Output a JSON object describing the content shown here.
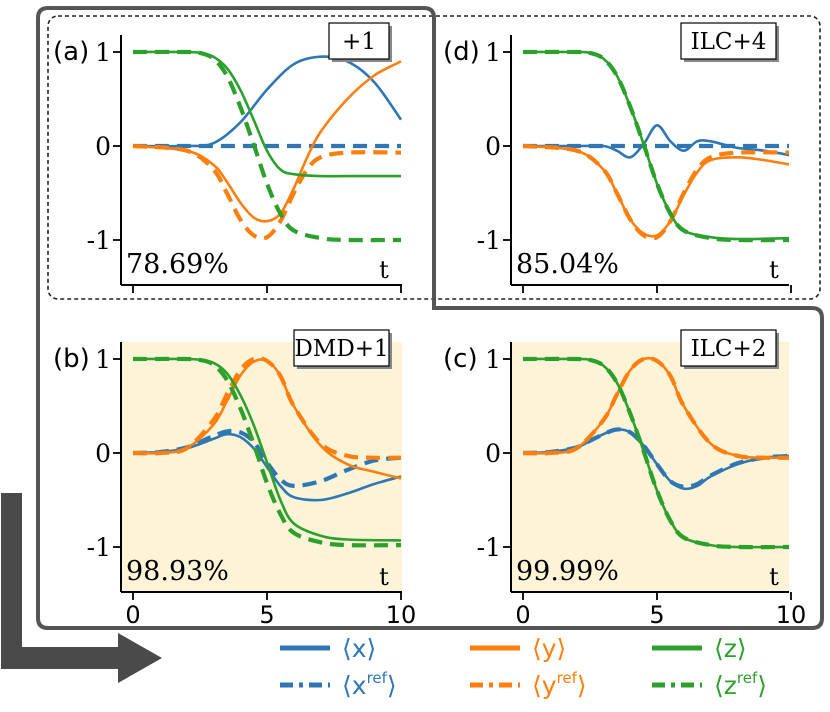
{
  "colors": {
    "x": "#2f77b4",
    "y": "#ff7f0e",
    "z": "#2ca02c",
    "panel_fill": "#fdf3d6",
    "frame": "#555555",
    "arrow": "#4a4a4a"
  },
  "legend": {
    "x": "⟨x⟩",
    "x_ref": "⟨x",
    "y": "⟨y⟩",
    "y_ref": "⟨y",
    "z": "⟨z⟩",
    "z_ref": "⟨z",
    "ref_sup": "ref",
    "close": "⟩"
  },
  "chart_data": [
    {
      "type": "line",
      "panel_label": "(a)",
      "method": "+1",
      "fidelity": "78.69%",
      "xlabel": "t",
      "ylabel": "",
      "xlim": [
        0,
        10
      ],
      "ylim": [
        -1,
        1
      ],
      "yticks": [
        "1",
        "0",
        "-1"
      ],
      "xticks": [],
      "shaded": false,
      "series": [
        {
          "var": "x",
          "ref": false,
          "x": [
            0,
            2,
            3,
            4,
            5,
            6,
            7,
            8,
            9,
            10
          ],
          "values": [
            0,
            0,
            0.03,
            0.25,
            0.6,
            0.87,
            0.95,
            0.9,
            0.68,
            0.28
          ]
        },
        {
          "var": "x",
          "ref": true,
          "x": [
            0,
            10
          ],
          "values": [
            0,
            0
          ]
        },
        {
          "var": "y",
          "ref": false,
          "x": [
            0,
            2,
            3,
            3.5,
            4,
            4.5,
            5,
            5.5,
            6,
            6.5,
            7,
            8,
            9,
            10
          ],
          "values": [
            0,
            -0.05,
            -0.2,
            -0.38,
            -0.6,
            -0.76,
            -0.8,
            -0.72,
            -0.45,
            -0.12,
            0.15,
            0.5,
            0.75,
            0.9
          ]
        },
        {
          "var": "y",
          "ref": true,
          "x": [
            0,
            2,
            3,
            3.5,
            4,
            4.5,
            5,
            5.5,
            6,
            6.5,
            7,
            8,
            10
          ],
          "values": [
            0,
            -0.05,
            -0.25,
            -0.5,
            -0.78,
            -0.95,
            -0.97,
            -0.8,
            -0.5,
            -0.25,
            -0.12,
            -0.07,
            -0.07
          ]
        },
        {
          "var": "z",
          "ref": false,
          "x": [
            0,
            2,
            2.5,
            3,
            3.5,
            4,
            4.5,
            5,
            5.5,
            6,
            7,
            8,
            10
          ],
          "values": [
            1,
            1,
            0.99,
            0.95,
            0.83,
            0.6,
            0.28,
            -0.05,
            -0.25,
            -0.3,
            -0.32,
            -0.32,
            -0.32
          ]
        },
        {
          "var": "z",
          "ref": true,
          "x": [
            0,
            2,
            2.5,
            3,
            3.5,
            4,
            4.5,
            5,
            5.5,
            6,
            7,
            8,
            10
          ],
          "values": [
            1,
            1,
            0.99,
            0.93,
            0.75,
            0.42,
            0.02,
            -0.4,
            -0.72,
            -0.9,
            -0.98,
            -1,
            -1
          ]
        }
      ]
    },
    {
      "type": "line",
      "panel_label": "(d)",
      "method": "ILC+4",
      "fidelity": "85.04%",
      "xlabel": "t",
      "ylabel": "",
      "xlim": [
        0,
        10
      ],
      "ylim": [
        -1,
        1
      ],
      "yticks": [
        "1",
        "0",
        "-1"
      ],
      "xticks": [],
      "shaded": false,
      "series": [
        {
          "var": "x",
          "ref": false,
          "x": [
            0,
            2,
            3,
            3.5,
            4,
            4.5,
            5,
            5.5,
            6,
            6.5,
            7,
            8,
            9,
            10
          ],
          "values": [
            0,
            0,
            0,
            -0.05,
            -0.12,
            0.02,
            0.22,
            0.05,
            -0.05,
            0.05,
            0.05,
            -0.02,
            -0.05,
            -0.1
          ]
        },
        {
          "var": "x",
          "ref": true,
          "x": [
            0,
            10
          ],
          "values": [
            0,
            0
          ]
        },
        {
          "var": "y",
          "ref": false,
          "x": [
            0,
            2,
            3,
            3.5,
            4,
            4.5,
            5,
            5.5,
            6,
            6.5,
            7,
            8,
            9,
            10
          ],
          "values": [
            0,
            -0.05,
            -0.25,
            -0.5,
            -0.78,
            -0.93,
            -0.95,
            -0.8,
            -0.52,
            -0.28,
            -0.15,
            -0.12,
            -0.15,
            -0.2
          ]
        },
        {
          "var": "y",
          "ref": true,
          "x": [
            0,
            2,
            3,
            3.5,
            4,
            4.5,
            5,
            5.5,
            6,
            6.5,
            7,
            8,
            10
          ],
          "values": [
            0,
            -0.05,
            -0.25,
            -0.5,
            -0.78,
            -0.95,
            -0.97,
            -0.8,
            -0.5,
            -0.25,
            -0.12,
            -0.07,
            -0.07
          ]
        },
        {
          "var": "z",
          "ref": false,
          "x": [
            0,
            2,
            2.5,
            3,
            3.5,
            4,
            4.5,
            5,
            5.5,
            6,
            7,
            8,
            10
          ],
          "values": [
            1,
            1,
            0.99,
            0.93,
            0.75,
            0.42,
            0.02,
            -0.4,
            -0.72,
            -0.9,
            -0.97,
            -0.99,
            -0.98
          ]
        },
        {
          "var": "z",
          "ref": true,
          "x": [
            0,
            2,
            2.5,
            3,
            3.5,
            4,
            4.5,
            5,
            5.5,
            6,
            7,
            8,
            10
          ],
          "values": [
            1,
            1,
            0.99,
            0.93,
            0.75,
            0.42,
            0.02,
            -0.4,
            -0.72,
            -0.9,
            -0.98,
            -1,
            -1
          ]
        }
      ]
    },
    {
      "type": "line",
      "panel_label": "(b)",
      "method": "DMD+1",
      "fidelity": "98.93%",
      "xlabel": "t",
      "ylabel": "",
      "xlim": [
        0,
        10
      ],
      "ylim": [
        -1,
        1
      ],
      "yticks": [
        "1",
        "0",
        "-1"
      ],
      "xticks": [
        "0",
        "5",
        "10"
      ],
      "shaded": true,
      "series": [
        {
          "var": "x",
          "ref": false,
          "x": [
            0,
            1,
            2,
            3,
            3.5,
            4,
            4.5,
            5,
            5.5,
            6,
            7,
            8,
            9,
            10
          ],
          "values": [
            0,
            0.01,
            0.05,
            0.15,
            0.2,
            0.17,
            0.05,
            -0.15,
            -0.35,
            -0.47,
            -0.5,
            -0.43,
            -0.33,
            -0.25
          ]
        },
        {
          "var": "x",
          "ref": true,
          "x": [
            0,
            1,
            2,
            3,
            3.5,
            4,
            4.5,
            5,
            5.5,
            6,
            7,
            8,
            9,
            10
          ],
          "values": [
            0,
            0.01,
            0.06,
            0.18,
            0.23,
            0.22,
            0.12,
            -0.1,
            -0.28,
            -0.35,
            -0.3,
            -0.18,
            -0.08,
            -0.05
          ]
        },
        {
          "var": "y",
          "ref": false,
          "x": [
            0,
            1,
            2,
            3,
            3.5,
            4,
            4.5,
            5,
            5.5,
            6,
            7,
            8,
            9,
            10
          ],
          "values": [
            0,
            0,
            0.05,
            0.3,
            0.55,
            0.82,
            0.97,
            0.98,
            0.82,
            0.5,
            0.08,
            -0.12,
            -0.2,
            -0.27
          ]
        },
        {
          "var": "y",
          "ref": true,
          "x": [
            0,
            1,
            2,
            3,
            3.5,
            4,
            4.5,
            5,
            5.5,
            6,
            7,
            8,
            9,
            10
          ],
          "values": [
            0,
            0,
            0.05,
            0.35,
            0.62,
            0.88,
            1,
            0.98,
            0.82,
            0.5,
            0.1,
            -0.03,
            -0.05,
            -0.05
          ]
        },
        {
          "var": "z",
          "ref": false,
          "x": [
            0,
            2,
            2.5,
            3,
            3.5,
            4,
            4.5,
            5,
            5.5,
            6,
            7,
            8,
            10
          ],
          "values": [
            1,
            1,
            0.99,
            0.96,
            0.85,
            0.62,
            0.3,
            -0.1,
            -0.5,
            -0.75,
            -0.88,
            -0.92,
            -0.93
          ]
        },
        {
          "var": "z",
          "ref": true,
          "x": [
            0,
            2,
            2.5,
            3,
            3.5,
            4,
            4.5,
            5,
            5.5,
            6,
            7,
            8,
            10
          ],
          "values": [
            1,
            1,
            0.99,
            0.94,
            0.78,
            0.48,
            0.1,
            -0.32,
            -0.65,
            -0.85,
            -0.95,
            -0.98,
            -0.98
          ]
        }
      ]
    },
    {
      "type": "line",
      "panel_label": "(c)",
      "method": "ILC+2",
      "fidelity": "99.99%",
      "xlabel": "t",
      "ylabel": "",
      "xlim": [
        0,
        10
      ],
      "ylim": [
        -1,
        1
      ],
      "yticks": [
        "1",
        "0",
        "-1"
      ],
      "xticks": [
        "0",
        "5",
        "10"
      ],
      "shaded": true,
      "series": [
        {
          "var": "x",
          "ref": false,
          "x": [
            0,
            1,
            2,
            2.5,
            3,
            3.5,
            4,
            4.5,
            5,
            5.5,
            6,
            6.5,
            7,
            8,
            9,
            10
          ],
          "values": [
            0,
            0.01,
            0.06,
            0.13,
            0.2,
            0.25,
            0.22,
            0.08,
            -0.12,
            -0.3,
            -0.38,
            -0.35,
            -0.25,
            -0.12,
            -0.05,
            -0.03
          ]
        },
        {
          "var": "x",
          "ref": true,
          "x": [
            0,
            1,
            2,
            2.5,
            3,
            3.5,
            4,
            4.5,
            5,
            5.5,
            6,
            6.5,
            7,
            8,
            9,
            10
          ],
          "values": [
            0,
            0.01,
            0.06,
            0.13,
            0.2,
            0.25,
            0.22,
            0.08,
            -0.12,
            -0.3,
            -0.36,
            -0.33,
            -0.24,
            -0.11,
            -0.05,
            -0.03
          ]
        },
        {
          "var": "y",
          "ref": false,
          "x": [
            0,
            1,
            2,
            3,
            3.5,
            4,
            4.5,
            5,
            5.5,
            6,
            7,
            8,
            9,
            10
          ],
          "values": [
            0,
            0,
            0.05,
            0.35,
            0.62,
            0.88,
            1,
            0.98,
            0.82,
            0.5,
            0.1,
            -0.03,
            -0.05,
            -0.05
          ]
        },
        {
          "var": "y",
          "ref": true,
          "x": [
            0,
            1,
            2,
            3,
            3.5,
            4,
            4.5,
            5,
            5.5,
            6,
            7,
            8,
            9,
            10
          ],
          "values": [
            0,
            0,
            0.05,
            0.35,
            0.62,
            0.88,
            1,
            0.98,
            0.82,
            0.5,
            0.1,
            -0.03,
            -0.05,
            -0.05
          ]
        },
        {
          "var": "z",
          "ref": false,
          "x": [
            0,
            2,
            2.5,
            3,
            3.5,
            4,
            4.5,
            5,
            5.5,
            6,
            7,
            8,
            10
          ],
          "values": [
            1,
            1,
            0.99,
            0.93,
            0.75,
            0.42,
            0.02,
            -0.4,
            -0.72,
            -0.9,
            -0.98,
            -1,
            -1
          ]
        },
        {
          "var": "z",
          "ref": true,
          "x": [
            0,
            2,
            2.5,
            3,
            3.5,
            4,
            4.5,
            5,
            5.5,
            6,
            7,
            8,
            10
          ],
          "values": [
            1,
            1,
            0.99,
            0.93,
            0.75,
            0.42,
            0.02,
            -0.4,
            -0.72,
            -0.9,
            -0.98,
            -1,
            -1
          ]
        }
      ]
    }
  ]
}
